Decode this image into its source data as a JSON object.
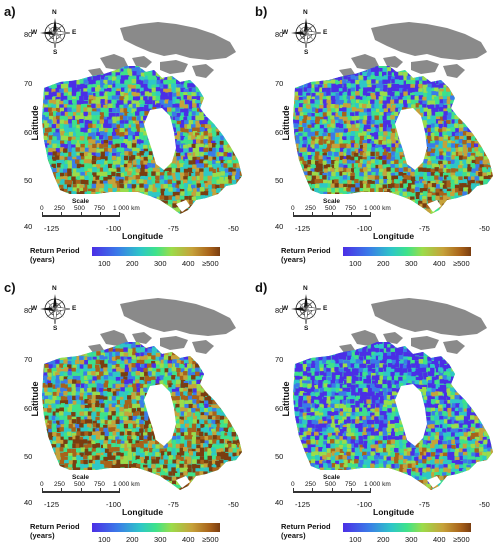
{
  "panels": [
    {
      "id": "a",
      "letter": "a)",
      "variant": "a"
    },
    {
      "id": "b",
      "letter": "b)",
      "variant": "b"
    },
    {
      "id": "c",
      "letter": "c)",
      "variant": "c"
    },
    {
      "id": "d",
      "letter": "d)",
      "variant": "d"
    }
  ],
  "axes": {
    "latitude_title": "Latitude",
    "longitude_title": "Longitude",
    "lat_ticks": [
      "80",
      "70",
      "60",
      "50",
      "40"
    ],
    "lon_ticks": [
      "-125",
      "-100",
      "-75",
      "-50"
    ]
  },
  "compass": {
    "n": "N",
    "s": "S",
    "e": "E",
    "w": "W"
  },
  "scale_bar": {
    "title": "Scale",
    "labels": [
      "0",
      "250",
      "500",
      "750",
      "1 000 km"
    ]
  },
  "legend": {
    "title_line1": "Return Period",
    "title_line2": "(years)",
    "labels": [
      "100",
      "200",
      "300",
      "400",
      "≥500"
    ],
    "colors": [
      "#4b2ee6",
      "#3a7be8",
      "#2ec7c7",
      "#3ee28a",
      "#9bdc4a",
      "#c6a23a",
      "#a8621a",
      "#7a3d10"
    ],
    "arctic_color": "#8a8a8a"
  }
}
